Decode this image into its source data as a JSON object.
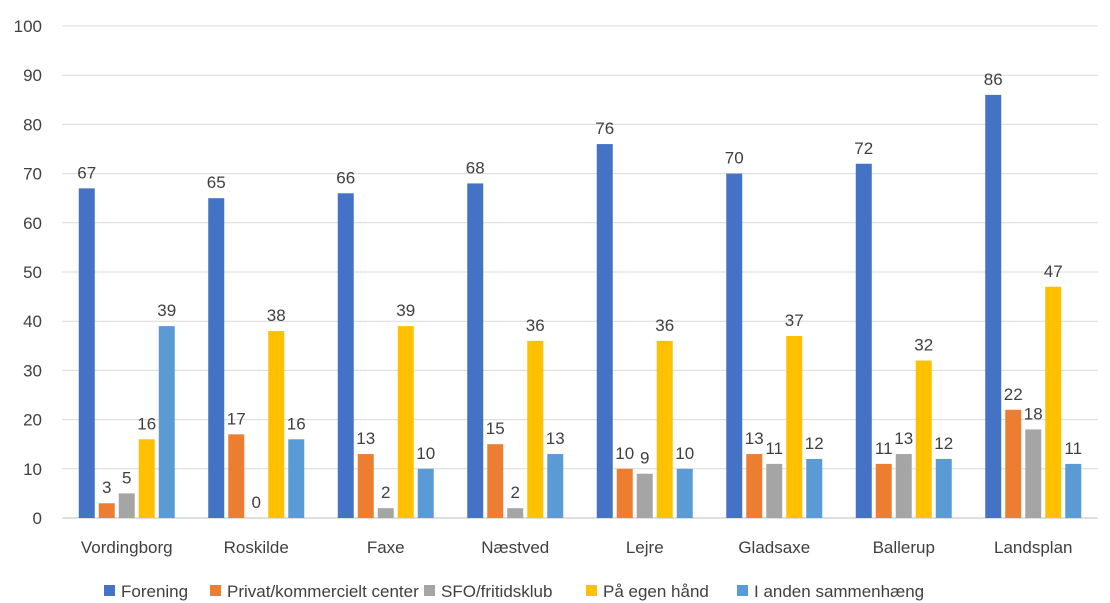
{
  "chart_data": {
    "type": "bar",
    "title": "",
    "xlabel": "",
    "ylabel": "",
    "ylim": [
      0,
      100
    ],
    "yticks": [
      0,
      10,
      20,
      30,
      40,
      50,
      60,
      70,
      80,
      90,
      100
    ],
    "grid": true,
    "legend_position": "bottom",
    "categories": [
      "Vordingborg",
      "Roskilde",
      "Faxe",
      "Næstved",
      "Lejre",
      "Gladsaxe",
      "Ballerup",
      "Landsplan"
    ],
    "series": [
      {
        "name": "Forening",
        "color": "#4472c4",
        "values": [
          67,
          65,
          66,
          68,
          76,
          70,
          72,
          86
        ]
      },
      {
        "name": "Privat/kommercielt center",
        "color": "#ed7d31",
        "values": [
          3,
          17,
          13,
          15,
          10,
          13,
          11,
          22
        ]
      },
      {
        "name": "SFO/fritidsklub",
        "color": "#a5a5a5",
        "values": [
          5,
          0,
          2,
          2,
          9,
          11,
          13,
          18
        ]
      },
      {
        "name": "På egen hånd",
        "color": "#ffc000",
        "values": [
          16,
          38,
          39,
          36,
          36,
          37,
          32,
          47
        ]
      },
      {
        "name": "I anden sammenhæng",
        "color": "#5b9bd5",
        "values": [
          39,
          16,
          10,
          13,
          10,
          12,
          12,
          11
        ]
      }
    ]
  }
}
